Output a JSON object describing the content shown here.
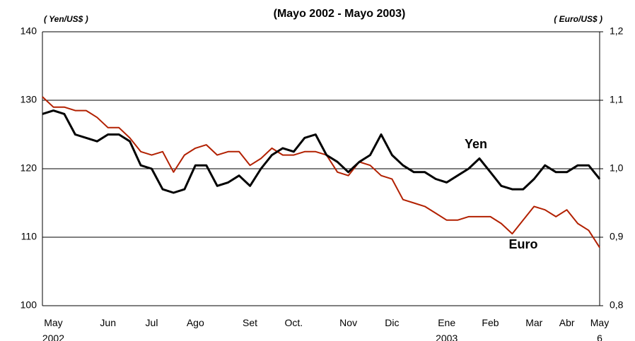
{
  "chart_data": {
    "type": "line",
    "title": "(Mayo 2002 - Mayo 2003)",
    "y_label": "( Yen/US$ )",
    "y2_label": "( Euro/US$ )",
    "annotations": [
      "Yen",
      "Euro"
    ],
    "categories": [
      null,
      "May\n2002",
      null,
      null,
      null,
      null,
      "Jun",
      null,
      null,
      null,
      "Jul",
      null,
      null,
      null,
      "Ago",
      null,
      null,
      null,
      null,
      "Set",
      null,
      null,
      null,
      "Oct.",
      null,
      null,
      null,
      null,
      "Nov",
      null,
      null,
      null,
      "Dic",
      null,
      null,
      null,
      null,
      "Ene\n2003",
      null,
      null,
      null,
      "Feb",
      null,
      null,
      null,
      "Mar",
      null,
      null,
      "Abr",
      null,
      null,
      "May\n6"
    ],
    "series": [
      {
        "name": "Yen",
        "color": "#000000",
        "values": [
          128,
          128.5,
          128,
          125,
          124.5,
          124,
          125,
          125,
          124,
          120.5,
          120,
          117,
          116.5,
          117,
          120.5,
          120.5,
          117.5,
          118,
          119,
          117.5,
          120,
          122,
          123,
          122.5,
          124.5,
          125,
          122,
          121,
          119.5,
          121,
          122,
          125,
          122,
          120.5,
          119.5,
          119.5,
          118.5,
          118,
          119,
          120,
          121.5,
          119.5,
          117.5,
          117,
          117,
          118.5,
          120.5,
          119.5,
          119.5,
          120.5,
          120.5,
          118.5
        ]
      },
      {
        "name": "Euro",
        "color": "#b22000",
        "axis": "y2",
        "values": [
          1.105,
          1.09,
          1.09,
          1.085,
          1.085,
          1.075,
          1.06,
          1.06,
          1.045,
          1.025,
          1.02,
          1.025,
          0.995,
          1.02,
          1.03,
          1.035,
          1.02,
          1.025,
          1.025,
          1.005,
          1.015,
          1.03,
          1.02,
          1.02,
          1.025,
          1.025,
          1.02,
          0.995,
          0.99,
          1.01,
          1.005,
          0.99,
          0.985,
          0.955,
          0.95,
          0.945,
          0.935,
          0.925,
          0.925,
          0.93,
          0.93,
          0.93,
          0.92,
          0.905,
          0.925,
          0.945,
          0.94,
          0.93,
          0.94,
          0.92,
          0.91,
          0.885
        ]
      }
    ],
    "ylim": [
      100,
      140
    ],
    "yticks": [
      100,
      110,
      120,
      130,
      140
    ],
    "y2lim": [
      0.8,
      1.2
    ],
    "y2ticks": [
      {
        "value": 0.8,
        "label": "0,8"
      },
      {
        "value": 0.9,
        "label": "0,9"
      },
      {
        "value": 1.0,
        "label": "1,0"
      },
      {
        "value": 1.1,
        "label": "1,1"
      },
      {
        "value": 1.2,
        "label": "1,2"
      }
    ],
    "grid": true
  }
}
